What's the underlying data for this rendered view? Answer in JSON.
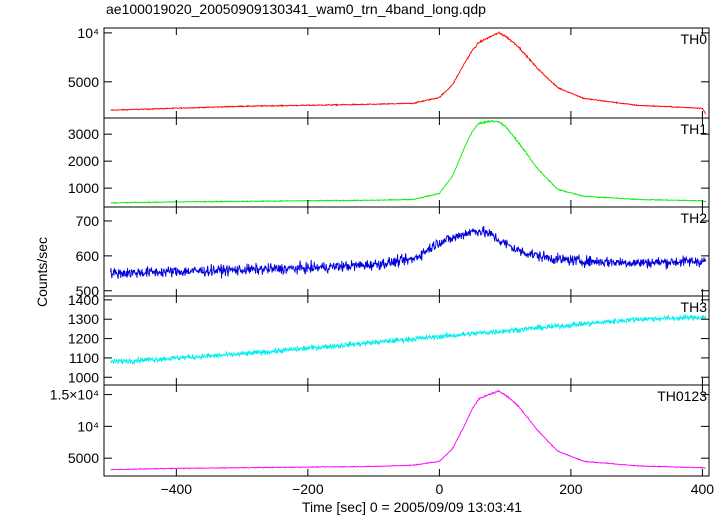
{
  "chart_data": {
    "type": "line",
    "title": "ae100019020_20050909130341_wam0_trn_4band_long.qdp",
    "xlabel": "Time [sec] 0 = 2005/09/09 13:03:41",
    "ylabel": "Counts/sec",
    "xlim": [
      -510,
      410
    ],
    "x_ticks": [
      "−400",
      "−200",
      "0",
      "200",
      "400"
    ],
    "x_tick_values": [
      -400,
      -200,
      0,
      200,
      400
    ],
    "panels": [
      {
        "name": "TH0",
        "color": "#ff0000",
        "ylim": [
          1300,
          10500
        ],
        "tick_values": [
          5000,
          10000
        ],
        "tick_labels": [
          "5000",
          "10⁴"
        ],
        "x": [
          -500,
          -400,
          -300,
          -200,
          -100,
          -40,
          0,
          20,
          40,
          50,
          60,
          80,
          90,
          100,
          120,
          150,
          180,
          220,
          300,
          400,
          405
        ],
        "values": [
          2100,
          2300,
          2500,
          2600,
          2700,
          2800,
          3400,
          4700,
          7100,
          8200,
          9000,
          9700,
          10000,
          9700,
          8600,
          6300,
          4400,
          3300,
          2600,
          2300,
          1700
        ]
      },
      {
        "name": "TH1",
        "color": "#00ee00",
        "ylim": [
          300,
          3600
        ],
        "tick_values": [
          1000,
          2000,
          3000
        ],
        "tick_labels": [
          "1000",
          "2000",
          "3000"
        ],
        "x": [
          -500,
          -400,
          -300,
          -200,
          -100,
          -40,
          0,
          20,
          40,
          50,
          60,
          80,
          90,
          100,
          120,
          150,
          180,
          220,
          300,
          400,
          405
        ],
        "values": [
          450,
          490,
          510,
          530,
          550,
          580,
          800,
          1450,
          2600,
          3100,
          3400,
          3500,
          3450,
          3300,
          2700,
          1700,
          950,
          700,
          580,
          530,
          500
        ]
      },
      {
        "name": "TH2",
        "color": "#0000dd",
        "ylim": [
          485,
          740
        ],
        "tick_values": [
          500,
          600,
          700
        ],
        "tick_labels": [
          "500",
          "600",
          "700"
        ],
        "x": [
          -500,
          -400,
          -300,
          -200,
          -100,
          -40,
          0,
          20,
          40,
          50,
          60,
          80,
          90,
          100,
          120,
          150,
          180,
          220,
          300,
          400,
          405
        ],
        "values": [
          550,
          555,
          560,
          565,
          575,
          590,
          640,
          650,
          665,
          670,
          672,
          660,
          645,
          635,
          615,
          600,
          590,
          585,
          580,
          585,
          585
        ]
      },
      {
        "name": "TH3",
        "color": "#00eeee",
        "ylim": [
          960,
          1420
        ],
        "tick_values": [
          1000,
          1100,
          1200,
          1300,
          1400
        ],
        "tick_labels": [
          "1000",
          "1100",
          "1200",
          "1300",
          "1400"
        ],
        "x": [
          -500,
          -400,
          -300,
          -200,
          -100,
          0,
          100,
          200,
          300,
          400,
          405
        ],
        "values": [
          1080,
          1100,
          1120,
          1150,
          1180,
          1210,
          1240,
          1270,
          1300,
          1310,
          1310
        ]
      },
      {
        "name": "TH0123",
        "color": "#ff00ff",
        "ylim": [
          2200,
          16500
        ],
        "tick_values": [
          5000,
          10000,
          15000
        ],
        "tick_labels": [
          "5000",
          "10⁴",
          "1.5×10⁴"
        ],
        "x": [
          -500,
          -400,
          -300,
          -200,
          -100,
          -40,
          0,
          20,
          40,
          50,
          60,
          80,
          90,
          100,
          120,
          150,
          180,
          220,
          300,
          400,
          405
        ],
        "values": [
          3200,
          3400,
          3500,
          3600,
          3700,
          3900,
          4500,
          6500,
          10500,
          12800,
          14300,
          15200,
          15500,
          15000,
          13200,
          9300,
          6100,
          4500,
          3800,
          3500,
          3400
        ]
      }
    ]
  }
}
